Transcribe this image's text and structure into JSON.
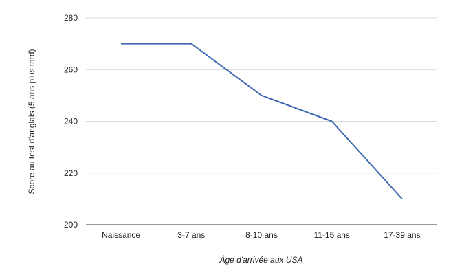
{
  "chart_data": {
    "type": "line",
    "title": "",
    "xlabel": "Âge d'arrivée aux USA",
    "ylabel": "Score au test d'anglais (5 ans plus tard)",
    "categories": [
      "Naissance",
      "3-7 ans",
      "8-10 ans",
      "11-15 ans",
      "17-39 ans"
    ],
    "series": [
      {
        "values": [
          270,
          270,
          250,
          240,
          210
        ]
      }
    ],
    "ylim": [
      200,
      280
    ],
    "yticks": [
      200,
      220,
      240,
      260,
      280
    ],
    "grid": true,
    "legend": "none",
    "colors": {
      "line": "#3d67b1",
      "grid": "#d9d9d9",
      "axis": "#333333"
    }
  }
}
